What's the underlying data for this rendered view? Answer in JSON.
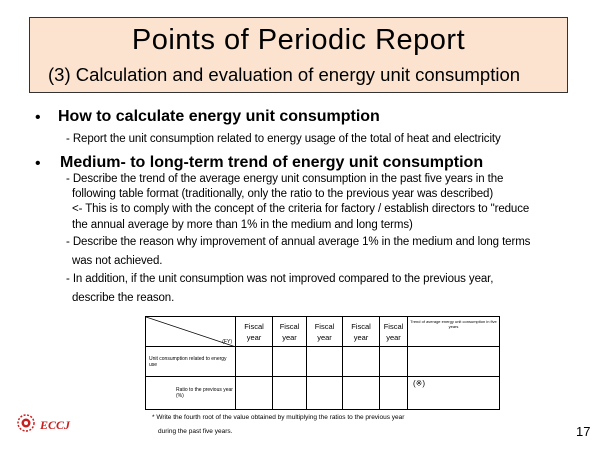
{
  "title": {
    "main": "Points of Periodic Report",
    "sub": "(3) Calculation and evaluation of energy unit consumption"
  },
  "bullets": [
    {
      "heading": "How to calculate energy unit consumption",
      "lines": [
        "- Report the unit consumption related to energy usage of the total of heat and electricity"
      ]
    },
    {
      "heading": "Medium- to long-term trend of energy unit consumption",
      "lines": [
        "- Describe the trend of the average energy unit consumption in the past five years in the",
        "following table format (traditionally, only the ratio to the previous year was described)",
        "<- This is to comply with the concept of the criteria for factory / establish directors to \"reduce",
        "the annual average by more than 1% in the medium and long terms)",
        "- Describe the reason why improvement of annual average 1% in the medium and long terms",
        "was not achieved.",
        "- In addition, if the unit consumption was not improved compared to the previous year,",
        "describe the reason."
      ]
    }
  ],
  "table": {
    "corner_label": "(FY)",
    "fiscal_year_header": [
      "Fiscal",
      "year"
    ],
    "columns_count": 5,
    "last_column_header": "Trend of average energy unit consumption in five years",
    "rows": [
      {
        "label": "Unit consumption related to energy use",
        "last_cell": ""
      },
      {
        "label": "Ratio to the previous year (%)",
        "last_cell": "(※)"
      }
    ]
  },
  "notes": [
    "* Write the fourth root of the value obtained by multiplying the ratios to the previous year",
    "during the past five years."
  ],
  "footer": {
    "logo_text": "ECCJ",
    "page_number": "17"
  },
  "colors": {
    "title_background": "#fbe3cf",
    "logo_red": "#c8201f"
  }
}
